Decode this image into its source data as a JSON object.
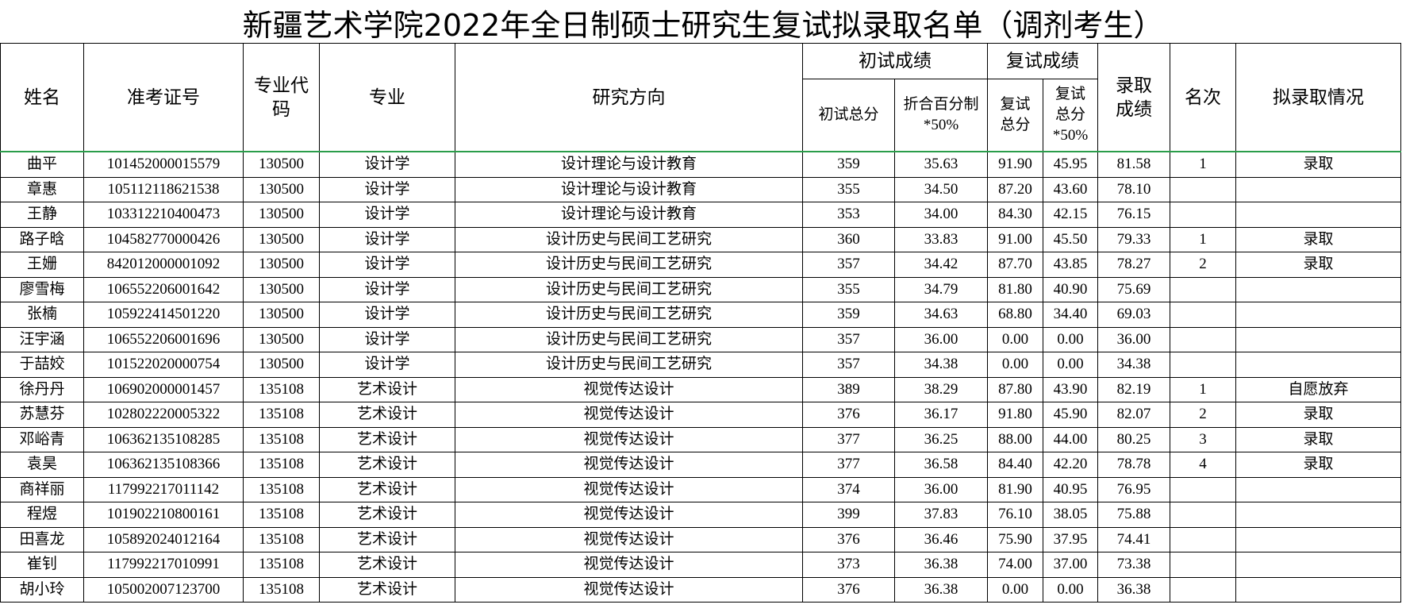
{
  "header": {
    "title": "新疆艺术学院2022年全日制硕士研究生复试拟录取名单（调剂考生）"
  },
  "table": {
    "columns": [
      "姓名",
      "准考证号",
      "专业代码",
      "专业",
      "研究方向",
      "初试成绩",
      "复试成绩",
      "录取成绩",
      "名次",
      "拟录取情况"
    ],
    "subcolumns": [
      "初试总分",
      "折合百分制*50%",
      "复试总分",
      "复试总分*50%"
    ],
    "rows": [
      [
        "曲平",
        "101452000015579",
        "130500",
        "设计学",
        "设计理论与设计教育",
        "359",
        "35.63",
        "91.90",
        "45.95",
        "81.58",
        "1",
        "录取"
      ],
      [
        "章惠",
        "105112118621538",
        "130500",
        "设计学",
        "设计理论与设计教育",
        "355",
        "34.50",
        "87.20",
        "43.60",
        "78.10",
        null,
        null
      ],
      [
        "王静",
        "103312210400473",
        "130500",
        "设计学",
        "设计理论与设计教育",
        "353",
        "34.00",
        "84.30",
        "42.15",
        "76.15",
        null,
        null
      ],
      [
        "路子晗",
        "104582770000426",
        "130500",
        "设计学",
        "设计历史与民间工艺研究",
        "360",
        "33.83",
        "91.00",
        "45.50",
        "79.33",
        "1",
        "录取"
      ],
      [
        "王姗",
        "842012000001092",
        "130500",
        "设计学",
        "设计历史与民间工艺研究",
        "357",
        "34.42",
        "87.70",
        "43.85",
        "78.27",
        "2",
        "录取"
      ],
      [
        "廖雪梅",
        "106552206001642",
        "130500",
        "设计学",
        "设计历史与民间工艺研究",
        "355",
        "34.79",
        "81.80",
        "40.90",
        "75.69",
        null,
        null
      ],
      [
        "张楠",
        "105922414501220",
        "130500",
        "设计学",
        "设计历史与民间工艺研究",
        "359",
        "34.63",
        "68.80",
        "34.40",
        "69.03",
        null,
        null
      ],
      [
        "汪宇涵",
        "106552206001696",
        "130500",
        "设计学",
        "设计历史与民间工艺研究",
        "357",
        "36.00",
        "0.00",
        "0.00",
        "36.00",
        null,
        null
      ],
      [
        "于喆姣",
        "101522020000754",
        "130500",
        "设计学",
        "设计历史与民间工艺研究",
        "357",
        "34.38",
        "0.00",
        "0.00",
        "34.38",
        null,
        null
      ],
      [
        "徐丹丹",
        "106902000001457",
        "135108",
        "艺术设计",
        "视觉传达设计",
        "389",
        "38.29",
        "87.80",
        "43.90",
        "82.19",
        "1",
        "自愿放弃"
      ],
      [
        "苏慧芬",
        "102802220005322",
        "135108",
        "艺术设计",
        "视觉传达设计",
        "376",
        "36.17",
        "91.80",
        "45.90",
        "82.07",
        "2",
        "录取"
      ],
      [
        "邓峪青",
        "106362135108285",
        "135108",
        "艺术设计",
        "视觉传达设计",
        "377",
        "36.25",
        "88.00",
        "44.00",
        "80.25",
        "3",
        "录取"
      ],
      [
        "袁昊",
        "106362135108366",
        "135108",
        "艺术设计",
        "视觉传达设计",
        "377",
        "36.58",
        "84.40",
        "42.20",
        "78.78",
        "4",
        "录取"
      ],
      [
        "商祥丽",
        "117992217011142",
        "135108",
        "艺术设计",
        "视觉传达设计",
        "374",
        "36.00",
        "81.90",
        "40.95",
        "76.95",
        null,
        null
      ],
      [
        "程煜",
        "101902210800161",
        "135108",
        "艺术设计",
        "视觉传达设计",
        "399",
        "37.83",
        "76.10",
        "38.05",
        "75.88",
        null,
        null
      ],
      [
        "田喜龙",
        "105892024012164",
        "135108",
        "艺术设计",
        "视觉传达设计",
        "376",
        "36.46",
        "75.90",
        "37.95",
        "74.41",
        null,
        null
      ],
      [
        "崔钊",
        "117992217010991",
        "135108",
        "艺术设计",
        "视觉传达设计",
        "373",
        "36.38",
        "74.00",
        "37.00",
        "73.38",
        null,
        null
      ],
      [
        "胡小玲",
        "105002007123700",
        "135108",
        "艺术设计",
        "视觉传达设计",
        "376",
        "36.38",
        "0.00",
        "0.00",
        "36.38",
        null,
        null
      ]
    ]
  }
}
